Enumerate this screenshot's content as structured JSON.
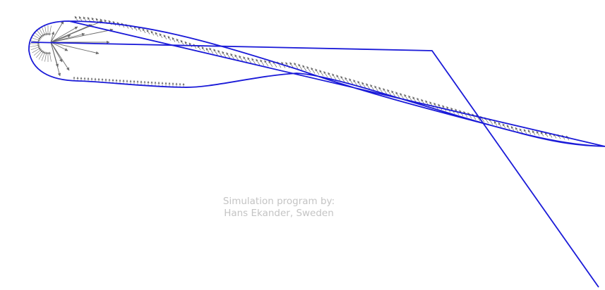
{
  "credit": {
    "line1": "Simulation program by:",
    "line2": "Hans Ekander, Sweden"
  },
  "colors": {
    "background": "#ffffff",
    "airfoil_outline": "#1a1ad8",
    "streamline": "#1a1ad8",
    "pressure_arrows": "#6b6b6b",
    "credit_text": "#c4c4c4"
  },
  "elements": {
    "airfoil": "airfoil-outline",
    "streamline": "streamline-path",
    "arrows": "pressure-arrow-field"
  }
}
